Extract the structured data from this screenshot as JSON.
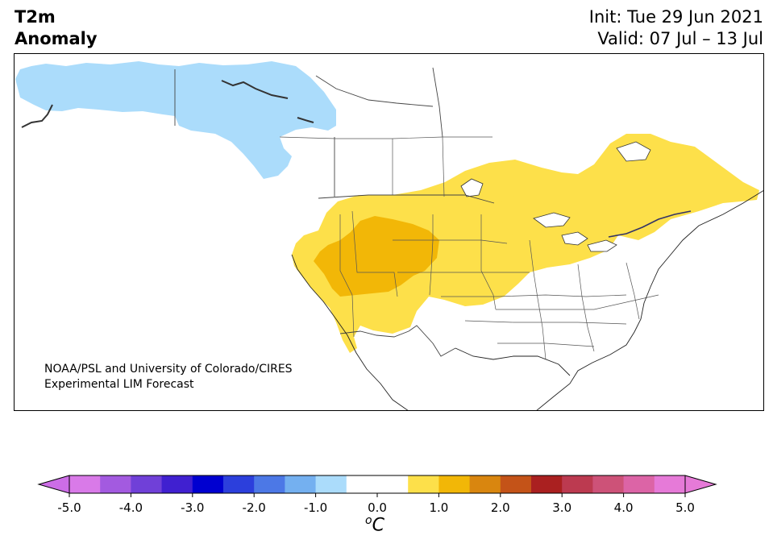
{
  "title": {
    "left_line1": "T2m",
    "left_line2": "Anomaly",
    "init": "Init: Tue 29 Jun 2021",
    "valid": "Valid: 07 Jul – 13 Jul"
  },
  "credit": {
    "line1": "NOAA/PSL and University of Colorado/CIRES",
    "line2": "Experimental LIM Forecast"
  },
  "colorbar": {
    "unit_sup": "o",
    "unit": "C",
    "ticks": [
      "-5.0",
      "-4.0",
      "-3.0",
      "-2.0",
      "-1.0",
      "0.0",
      "1.0",
      "2.0",
      "3.0",
      "4.0",
      "5.0"
    ],
    "tick_values": [
      -5,
      -4,
      -3,
      -2,
      -1,
      0,
      1,
      2,
      3,
      4,
      5
    ],
    "min": -5.0,
    "max": 5.0,
    "step": 0.5,
    "colors": [
      "#d97ae8",
      "#a35ae0",
      "#7040d8",
      "#4020d0",
      "#0000d0",
      "#2c3fdc",
      "#4c78e6",
      "#74b0f0",
      "#abdcfb",
      "#ffffff",
      "#ffffff",
      "#fde04a",
      "#f2b707",
      "#d9860f",
      "#c45318",
      "#aa2020",
      "#bc3a50",
      "#cd5278",
      "#dc64a6",
      "#e67ad8"
    ],
    "under_color": "#cc6de6",
    "over_color": "#e67ad8"
  },
  "map": {
    "colors": {
      "ocean": "#ffffff",
      "land": "#ffffff",
      "border": "#333333",
      "cold_anomaly": "#abdcfb",
      "warm_anomaly": "#fde04a",
      "strong_warm_anomaly": "#f2b707"
    }
  }
}
